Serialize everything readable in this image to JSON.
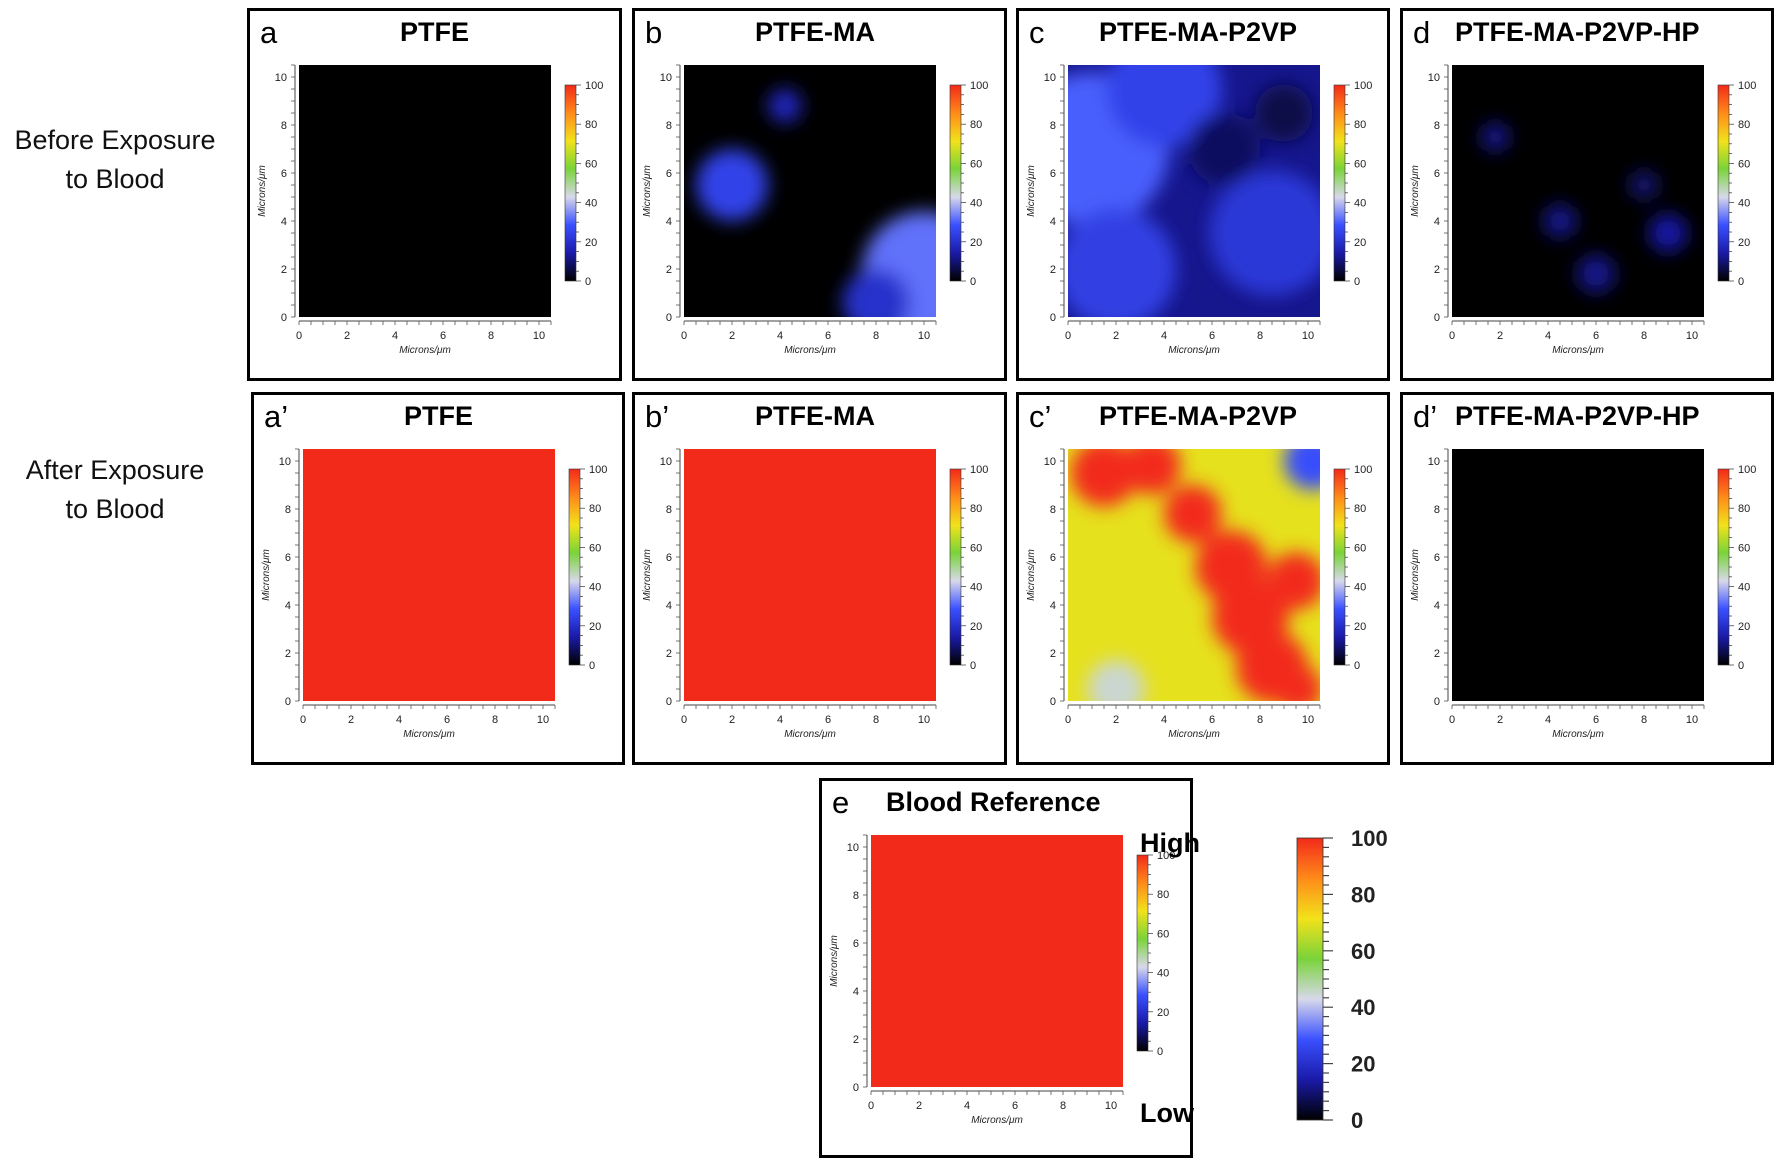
{
  "row_labels": {
    "before": [
      "Before Exposure",
      "to Blood"
    ],
    "after": [
      "After Exposure",
      "to Blood"
    ]
  },
  "axis": {
    "xlabel": "Microns/μm",
    "ylabel": "Microns/μm",
    "ticks": [
      "0",
      "2",
      "4",
      "6",
      "8",
      "10"
    ],
    "xlim": [
      0,
      10.5
    ],
    "ylim": [
      0,
      10.5
    ]
  },
  "colorbar_ticks": [
    "0",
    "20",
    "40",
    "60",
    "80",
    "100"
  ],
  "legend": {
    "high": "High",
    "low": "Low",
    "ticks": [
      "0",
      "20",
      "40",
      "60",
      "80",
      "100"
    ]
  },
  "colors": {
    "scale": [
      "#000000",
      "#1a1aa8",
      "#3a50ff",
      "#d8d8ea",
      "#7ad33a",
      "#f2e21a",
      "#ff8a1a",
      "#f22a1a"
    ],
    "panel_border": "#000000"
  },
  "chart_data": [
    {
      "id": "a",
      "letter": "a",
      "title": "PTFE",
      "type": "heatmap",
      "row": "before",
      "fill": "uniform",
      "value": 0
    },
    {
      "id": "b",
      "letter": "b",
      "title": "PTFE-MA",
      "type": "heatmap",
      "row": "before",
      "fill": "blobs",
      "value": 0,
      "blobs": [
        {
          "x": 2,
          "y": 5.5,
          "r": 1.5,
          "v": 25
        },
        {
          "x": 4.2,
          "y": 8.8,
          "r": 0.7,
          "v": 18
        },
        {
          "x": 10,
          "y": 1.8,
          "r": 2.6,
          "v": 32
        },
        {
          "x": 8,
          "y": 0.6,
          "r": 1.4,
          "v": 20
        }
      ]
    },
    {
      "id": "c",
      "letter": "c",
      "title": "PTFE-MA-P2VP",
      "type": "heatmap",
      "row": "before",
      "fill": "blobs",
      "value": 12,
      "blobs": [
        {
          "x": 1,
          "y": 7,
          "r": 3.2,
          "v": 30
        },
        {
          "x": 4,
          "y": 9.5,
          "r": 2.4,
          "v": 25
        },
        {
          "x": 8.5,
          "y": 3.5,
          "r": 2.6,
          "v": 22
        },
        {
          "x": 2,
          "y": 2,
          "r": 2.5,
          "v": 24
        },
        {
          "x": 6.5,
          "y": 7,
          "r": 1.5,
          "v": 8
        },
        {
          "x": 9,
          "y": 8.5,
          "r": 1.2,
          "v": 6
        }
      ]
    },
    {
      "id": "d",
      "letter": "d",
      "title": "PTFE-MA-P2VP-HP",
      "type": "heatmap",
      "row": "before",
      "fill": "blobs",
      "value": 0,
      "blobs": [
        {
          "x": 1.8,
          "y": 7.5,
          "r": 0.6,
          "v": 12
        },
        {
          "x": 4.5,
          "y": 4,
          "r": 0.7,
          "v": 12
        },
        {
          "x": 6,
          "y": 1.8,
          "r": 0.8,
          "v": 12
        },
        {
          "x": 9,
          "y": 3.5,
          "r": 0.8,
          "v": 14
        },
        {
          "x": 8,
          "y": 5.5,
          "r": 0.6,
          "v": 10
        }
      ]
    },
    {
      "id": "a2",
      "letter": "a’",
      "title": "PTFE",
      "type": "heatmap",
      "row": "after",
      "fill": "uniform",
      "value": 100
    },
    {
      "id": "b2",
      "letter": "b’",
      "title": "PTFE-MA",
      "type": "heatmap",
      "row": "after",
      "fill": "uniform",
      "value": 100
    },
    {
      "id": "c2",
      "letter": "c’",
      "title": "PTFE-MA-P2VP",
      "type": "heatmap",
      "row": "after",
      "fill": "blobs",
      "value": 70,
      "blobs": [
        {
          "x": 1.5,
          "y": 9.5,
          "r": 1.4,
          "v": 100
        },
        {
          "x": 3.5,
          "y": 9.8,
          "r": 1.2,
          "v": 100
        },
        {
          "x": 5.2,
          "y": 7.8,
          "r": 1.2,
          "v": 100
        },
        {
          "x": 6.8,
          "y": 5.6,
          "r": 1.5,
          "v": 100
        },
        {
          "x": 7.6,
          "y": 3.5,
          "r": 1.6,
          "v": 100
        },
        {
          "x": 8.5,
          "y": 1.4,
          "r": 1.5,
          "v": 100
        },
        {
          "x": 9.6,
          "y": 0.5,
          "r": 1.0,
          "v": 100
        },
        {
          "x": 9.5,
          "y": 5.0,
          "r": 1.2,
          "v": 100
        },
        {
          "x": 10.2,
          "y": 10.0,
          "r": 1.2,
          "v": 28
        },
        {
          "x": 2,
          "y": 0.5,
          "r": 1.2,
          "v": 45
        }
      ]
    },
    {
      "id": "d2",
      "letter": "d’",
      "title": "PTFE-MA-P2VP-HP",
      "type": "heatmap",
      "row": "after",
      "fill": "uniform",
      "value": 0
    },
    {
      "id": "e",
      "letter": "e",
      "title": "Blood Reference",
      "type": "heatmap",
      "row": "reference",
      "fill": "uniform",
      "value": 100
    }
  ]
}
